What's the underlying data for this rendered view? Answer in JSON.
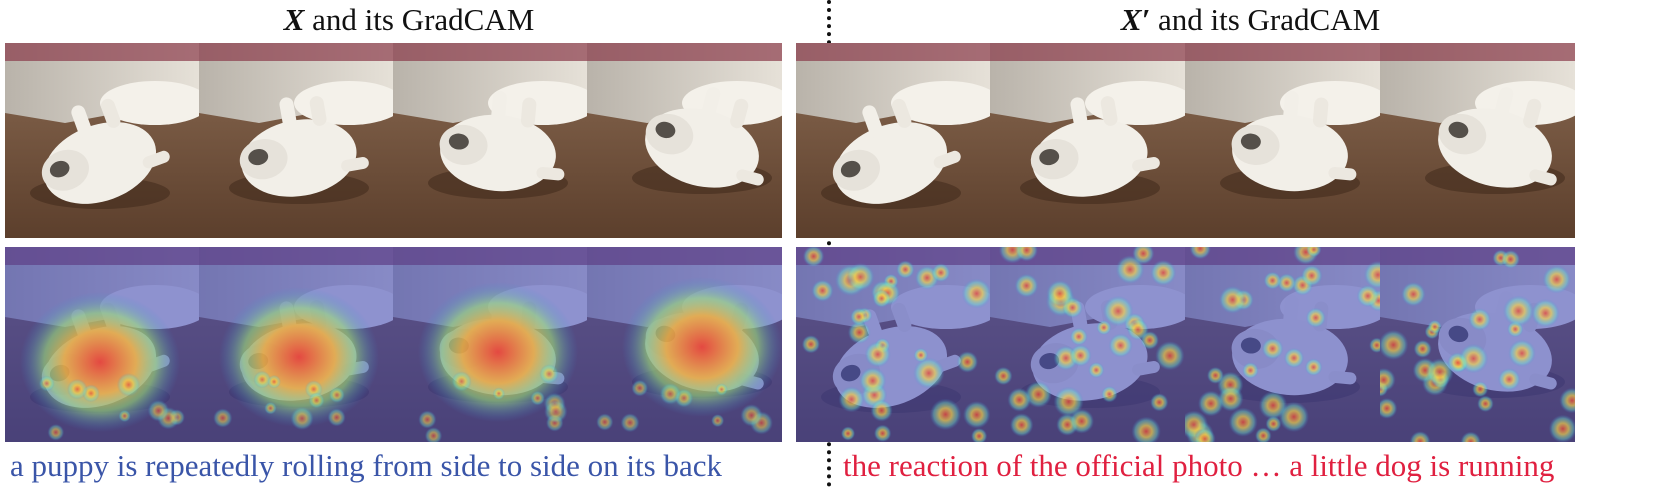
{
  "left_panel": {
    "title_var": "X",
    "title_rest": " and its GradCAM",
    "caption": "a puppy is repeatedly rolling from side to side on its back",
    "caption_color": "#3a55a8"
  },
  "right_panel": {
    "title_var": "X′",
    "title_rest": " and its GradCAM",
    "caption": "the reaction of the official photo … a little dog is running",
    "caption_color": "#e02040"
  },
  "colors": {
    "floor": "#6b4a34",
    "wall": "#d9d4cc",
    "dog": "#f2efe8",
    "heatmap_cold": "#3a44b8",
    "heatmap_hot": "#e8453a"
  }
}
